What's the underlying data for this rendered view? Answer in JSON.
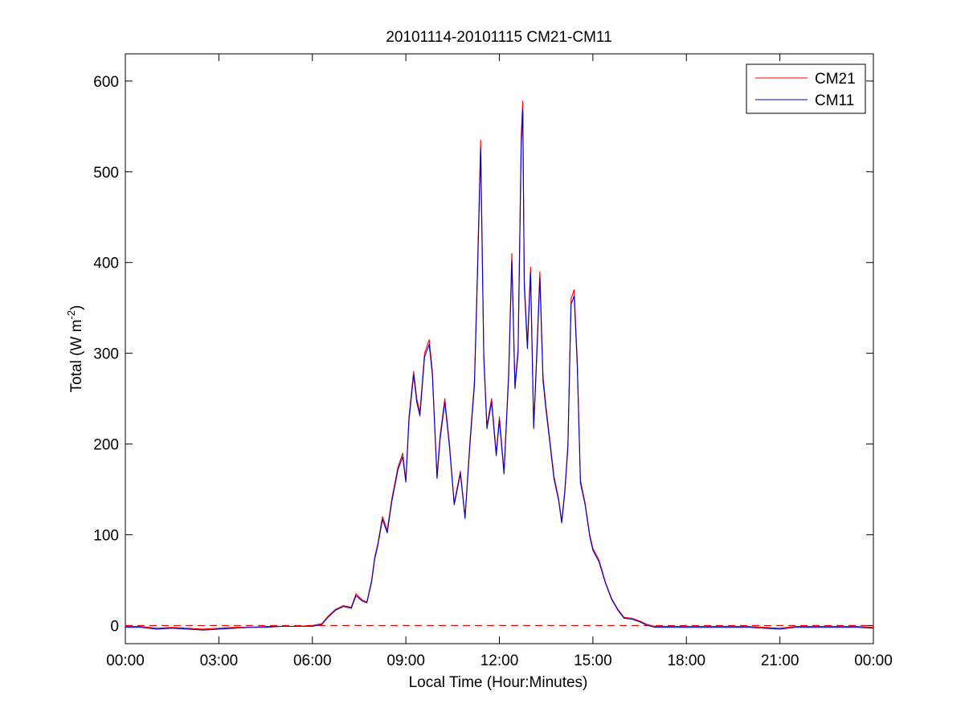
{
  "chart_data": {
    "type": "line",
    "title": "20101114-20101115 CM21-CM11",
    "xlabel": "Local Time (Hour:Minutes)",
    "ylabel": {
      "main": "Total (W m",
      "superscript": "-2",
      "close": ")"
    },
    "xlim": [
      "00:00",
      "24:00"
    ],
    "ylim": [
      -20,
      630
    ],
    "x_unit": "hours (local time)",
    "x_tick_labels": [
      "00:00",
      "03:00",
      "06:00",
      "09:00",
      "12:00",
      "15:00",
      "18:00",
      "21:00",
      "00:00"
    ],
    "x_ticks": [
      0,
      3,
      6,
      9,
      12,
      15,
      18,
      21,
      24
    ],
    "y_ticks": [
      0,
      100,
      200,
      300,
      400,
      500,
      600
    ],
    "y_tick_labels": [
      "0",
      "100",
      "200",
      "300",
      "400",
      "500",
      "600"
    ],
    "grid": false,
    "legend_position": "top-right",
    "reference_line": {
      "y": 0,
      "color": "#ff0000",
      "style": "dashed"
    },
    "x": [
      0,
      0.5,
      1.0,
      1.5,
      2.0,
      2.5,
      3.0,
      3.5,
      4.0,
      4.5,
      5.0,
      5.5,
      6.0,
      6.3,
      6.5,
      6.75,
      7.0,
      7.25,
      7.4,
      7.6,
      7.75,
      7.9,
      8.0,
      8.1,
      8.25,
      8.4,
      8.55,
      8.75,
      8.9,
      9.0,
      9.1,
      9.25,
      9.35,
      9.45,
      9.6,
      9.75,
      9.85,
      10.0,
      10.1,
      10.25,
      10.4,
      10.55,
      10.75,
      10.9,
      11.05,
      11.2,
      11.3,
      11.4,
      11.5,
      11.6,
      11.75,
      11.9,
      12.0,
      12.15,
      12.3,
      12.4,
      12.5,
      12.6,
      12.7,
      12.75,
      12.8,
      12.9,
      13.0,
      13.1,
      13.2,
      13.3,
      13.4,
      13.5,
      13.6,
      13.75,
      13.9,
      14.0,
      14.1,
      14.2,
      14.3,
      14.4,
      14.5,
      14.6,
      14.75,
      14.9,
      15.0,
      15.2,
      15.4,
      15.6,
      15.8,
      16.0,
      16.25,
      16.5,
      16.75,
      17.0,
      17.25,
      17.5,
      18.0,
      18.5,
      19.0,
      19.5,
      20.0,
      20.5,
      21.0,
      21.5,
      22.0,
      22.5,
      23.0,
      23.5,
      24.0
    ],
    "series": [
      {
        "name": "CM21",
        "color": "#ff0000",
        "values": [
          -1,
          -1,
          -3,
          -2,
          -3,
          -4,
          -3,
          -2,
          -2,
          -1,
          -1,
          -1,
          0,
          2,
          10,
          18,
          22,
          20,
          35,
          28,
          26,
          50,
          75,
          90,
          120,
          105,
          140,
          175,
          190,
          160,
          230,
          280,
          250,
          235,
          300,
          315,
          280,
          165,
          210,
          250,
          200,
          135,
          170,
          120,
          200,
          270,
          395,
          535,
          300,
          220,
          250,
          190,
          230,
          170,
          280,
          410,
          265,
          305,
          540,
          578,
          380,
          310,
          395,
          220,
          300,
          390,
          275,
          240,
          210,
          165,
          140,
          115,
          150,
          200,
          360,
          370,
          290,
          160,
          135,
          100,
          85,
          72,
          48,
          30,
          18,
          9,
          8,
          5,
          1,
          -1,
          -1,
          -1,
          -1,
          -1,
          -1,
          -1,
          -1,
          -2,
          -3,
          -1,
          -1,
          -1,
          -1,
          -1,
          -2
        ]
      },
      {
        "name": "CM11",
        "color": "#0000cc",
        "values": [
          -2,
          -2,
          -4,
          -3,
          -4,
          -5,
          -4,
          -3,
          -2,
          -2,
          -1,
          -1,
          -1,
          1,
          9,
          17,
          21,
          19,
          33,
          27,
          25,
          48,
          73,
          88,
          117,
          102,
          137,
          172,
          186,
          158,
          226,
          276,
          246,
          231,
          296,
          310,
          276,
          162,
          206,
          246,
          197,
          133,
          167,
          118,
          196,
          265,
          388,
          525,
          295,
          217,
          246,
          187,
          226,
          167,
          275,
          402,
          261,
          300,
          530,
          568,
          374,
          305,
          388,
          217,
          295,
          383,
          270,
          236,
          207,
          162,
          138,
          113,
          147,
          196,
          354,
          363,
          285,
          157,
          133,
          98,
          83,
          70,
          47,
          29,
          17,
          8,
          7,
          4,
          0,
          -2,
          -2,
          -2,
          -2,
          -2,
          -2,
          -2,
          -2,
          -3,
          -4,
          -2,
          -2,
          -2,
          -2,
          -2,
          -3
        ]
      }
    ]
  }
}
